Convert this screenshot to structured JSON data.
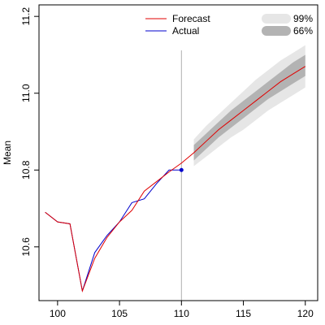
{
  "chart_data": {
    "type": "line",
    "ylabel": "Mean",
    "xlim": [
      98.5,
      121
    ],
    "ylim": [
      10.46,
      11.23
    ],
    "x_ticks": [
      100,
      105,
      110,
      115,
      120
    ],
    "x_tick_labels": [
      "100",
      "105",
      "110",
      "115",
      "120"
    ],
    "y_ticks": [
      10.6,
      10.8,
      11.0,
      11.2
    ],
    "y_tick_labels": [
      "10.6",
      "10.8",
      "11.0",
      "11.2"
    ],
    "forecast_origin": 110,
    "legend_lines": [
      {
        "name": "Forecast",
        "color": "#e00000"
      },
      {
        "name": "Actual",
        "color": "#0000cc"
      }
    ],
    "legend_bands": [
      {
        "name": "99%",
        "color": "#e6e6e6"
      },
      {
        "name": "66%",
        "color": "#b3b3b3"
      }
    ],
    "series": [
      {
        "name": "Actual",
        "color": "#0000cc",
        "x": [
          99,
          100,
          101,
          102,
          103,
          104,
          105,
          106,
          107,
          108,
          109,
          110
        ],
        "values": [
          10.69,
          10.665,
          10.66,
          10.485,
          10.585,
          10.63,
          10.665,
          10.715,
          10.725,
          10.765,
          10.8,
          10.8
        ]
      },
      {
        "name": "Forecast",
        "color": "#e00000",
        "x": [
          99,
          100,
          101,
          102,
          103,
          104,
          105,
          106,
          107,
          108,
          109,
          110,
          111,
          112,
          113,
          114,
          115,
          116,
          117,
          118,
          119,
          120
        ],
        "values": [
          10.69,
          10.665,
          10.66,
          10.485,
          10.57,
          10.625,
          10.665,
          10.695,
          10.745,
          10.77,
          10.795,
          10.818,
          10.845,
          10.875,
          10.905,
          10.93,
          10.955,
          10.98,
          11.005,
          11.03,
          11.05,
          11.07
        ]
      }
    ],
    "bands": [
      {
        "name": "99%",
        "color": "#e6e6e6",
        "x": [
          111,
          112,
          113,
          114,
          115,
          116,
          117,
          118,
          119,
          120
        ],
        "lower": [
          10.81,
          10.835,
          10.86,
          10.885,
          10.905,
          10.93,
          10.955,
          10.975,
          10.995,
          11.015
        ],
        "upper": [
          10.88,
          10.915,
          10.945,
          10.975,
          11.005,
          11.035,
          11.06,
          11.085,
          11.105,
          11.125
        ]
      },
      {
        "name": "66%",
        "color": "#b3b3b3",
        "x": [
          111,
          112,
          113,
          114,
          115,
          116,
          117,
          118,
          119,
          120
        ],
        "lower": [
          10.825,
          10.855,
          10.885,
          10.91,
          10.935,
          10.96,
          10.985,
          11.005,
          11.025,
          11.045
        ],
        "upper": [
          10.865,
          10.895,
          10.925,
          10.955,
          10.98,
          11.005,
          11.03,
          11.055,
          11.08,
          11.1
        ]
      }
    ]
  }
}
